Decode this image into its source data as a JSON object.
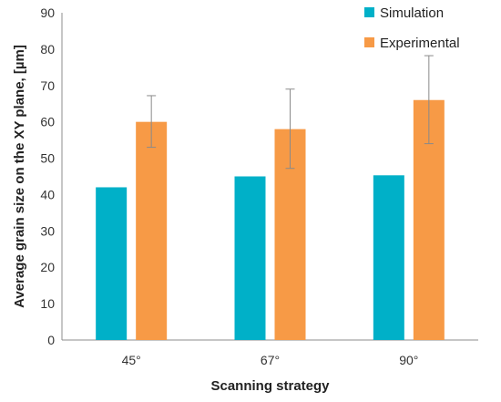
{
  "chart_data": {
    "type": "bar",
    "categories": [
      "45°",
      "67°",
      "90°"
    ],
    "series": [
      {
        "name": "Simulation",
        "color": "#00B0C8",
        "values": [
          42,
          45,
          45.3
        ],
        "error": null
      },
      {
        "name": "Experimental",
        "color": "#F79A46",
        "values": [
          60,
          58,
          66
        ],
        "error_low": [
          53,
          47.2,
          54
        ],
        "error_high": [
          67.2,
          69,
          78.2
        ]
      }
    ],
    "xlabel": "Scanning strategy",
    "ylabel": "Average grain size on the XY plane, [µm]",
    "ylim": [
      0,
      90
    ],
    "yticks": [
      0,
      10,
      20,
      30,
      40,
      50,
      60,
      70,
      80,
      90
    ],
    "grid": false,
    "legend_position": "top-right"
  }
}
